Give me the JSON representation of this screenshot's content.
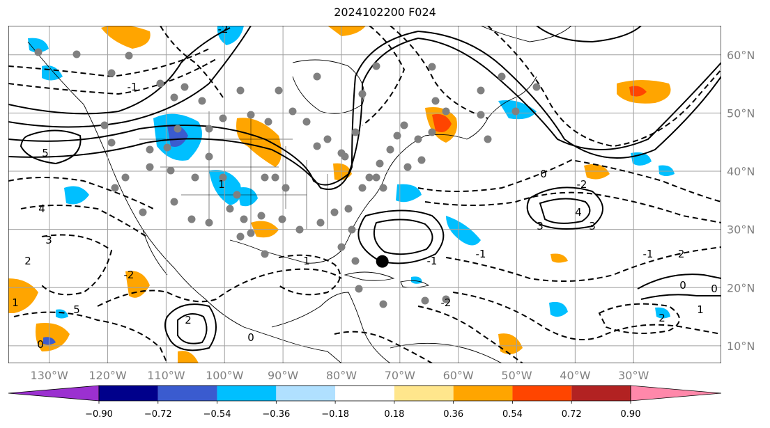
{
  "title": "2024102200 F024",
  "map": {
    "projection": "plate-carree",
    "lon_range": [
      -137,
      -15
    ],
    "lat_range": [
      7,
      65
    ],
    "gridlines": true,
    "gridline_color": "#a0a0a0",
    "lon_labels": [
      "130°W",
      "120°W",
      "110°W",
      "100°W",
      "90°W",
      "80°W",
      "70°W",
      "60°W",
      "50°W",
      "40°W",
      "30°W"
    ],
    "lat_labels": [
      "60°N",
      "50°N",
      "40°N",
      "30°N",
      "20°N",
      "10°N"
    ],
    "contour_labels": [
      "5",
      "4",
      "3",
      "2",
      "1",
      "0",
      "-1",
      "-2",
      "5",
      "2",
      "1",
      "0",
      "-1",
      "-2",
      "3",
      "4",
      "3",
      "-1",
      "-2",
      "0",
      "1",
      "2",
      "0",
      "-2",
      "1",
      "0",
      "-1",
      "-2"
    ],
    "marker": {
      "symbol": "large-black-dot",
      "lon": -73,
      "lat": 24.5
    }
  },
  "colorbar": {
    "colors": [
      "#9b30d0",
      "#00008b",
      "#3a5bcf",
      "#00bfff",
      "#b0e0ff",
      "#ffffff",
      "#ffe68c",
      "#ffa500",
      "#ff4500",
      "#b22222",
      "#ff88aa"
    ],
    "ticks": [
      "−0.90",
      "−0.72",
      "−0.54",
      "−0.36",
      "−0.18",
      "0.18",
      "0.36",
      "0.54",
      "0.72",
      "0.90"
    ]
  }
}
